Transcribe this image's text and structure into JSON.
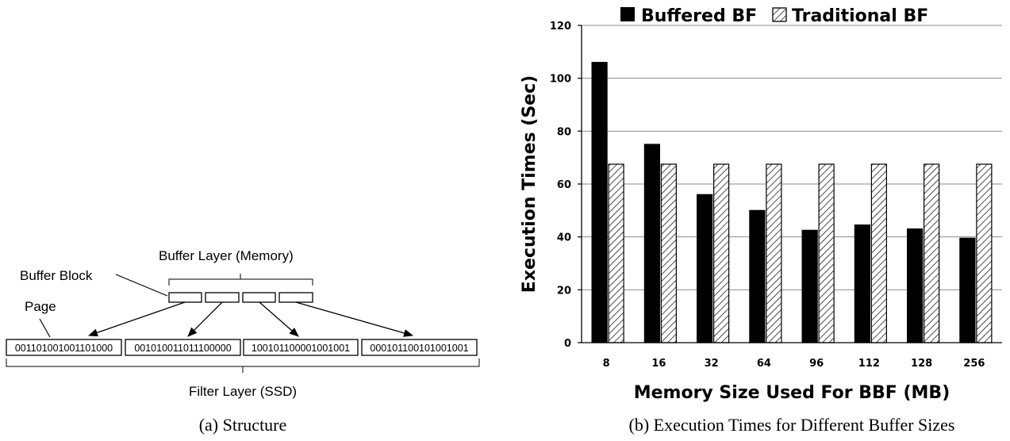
{
  "figure_a": {
    "caption": "(a) Structure",
    "buffer_layer_label": "Buffer Layer (Memory)",
    "buffer_block_label": "Buffer Block",
    "page_label": "Page",
    "filter_layer_label": "Filter Layer (SSD)",
    "pages": [
      "001101001001101000",
      "001010011011100000",
      "100101100001001001",
      "000101100101001001"
    ],
    "buffer_block_count": 4
  },
  "figure_b": {
    "caption": "(b) Execution Times for Different Buffer Sizes"
  },
  "chart_data": {
    "type": "bar",
    "title": "",
    "xlabel": "Memory Size Used For BBF (MB)",
    "ylabel": "Execution Times (Sec)",
    "ylim": [
      0,
      120
    ],
    "yticks": [
      0,
      20,
      40,
      60,
      80,
      100,
      120
    ],
    "grid": true,
    "legend_position": "top",
    "categories": [
      "8",
      "16",
      "32",
      "64",
      "96",
      "112",
      "128",
      "256"
    ],
    "series": [
      {
        "name": "Buffered BF",
        "values": [
          106,
          75,
          56,
          50,
          42.5,
          44.5,
          43,
          39.5
        ],
        "color": "#000000",
        "fill": "solid"
      },
      {
        "name": "Traditional BF",
        "values": [
          67.5,
          67.5,
          67.5,
          67.5,
          67.5,
          67.5,
          67.5,
          67.5
        ],
        "color": "#000000",
        "fill": "hatched"
      }
    ]
  }
}
